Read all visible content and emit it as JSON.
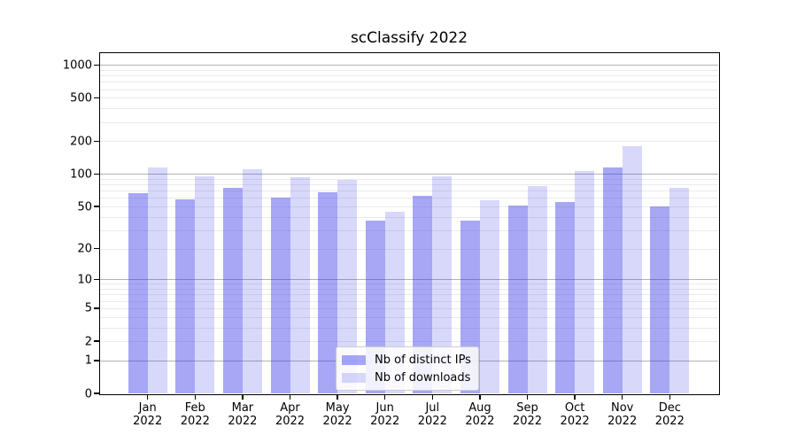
{
  "chart_data": {
    "type": "bar",
    "title": "scClassify 2022",
    "yscale": "log10(1+x)",
    "categories": [
      "Jan 2022",
      "Feb 2022",
      "Mar 2022",
      "Apr 2022",
      "May 2022",
      "Jun 2022",
      "Jul 2022",
      "Aug 2022",
      "Sep 2022",
      "Oct 2022",
      "Nov 2022",
      "Dec 2022"
    ],
    "series": [
      {
        "name": "Nb of distinct IPs",
        "color": "rgba(50,50,235,0.43)",
        "values": [
          66,
          58,
          75,
          61,
          68,
          37,
          63,
          37,
          51,
          55,
          115,
          50
        ]
      },
      {
        "name": "Nb of downloads",
        "color": "rgba(50,50,235,0.19)",
        "values": [
          116,
          95,
          110,
          93,
          88,
          45,
          95,
          57,
          77,
          106,
          181,
          75
        ]
      }
    ],
    "yticks": [
      1000,
      500,
      200,
      100,
      50,
      20,
      10,
      5,
      2,
      1,
      0
    ],
    "ylim": [
      0,
      1280
    ],
    "xlabel": "",
    "ylabel": "",
    "grid": {
      "major_at": [
        1,
        10,
        100,
        1000
      ],
      "minor_mantissas": [
        2,
        3,
        4,
        5,
        6,
        7,
        8,
        9
      ],
      "major_color": "#b2b2b2",
      "minor_color": "#eaeaea"
    },
    "legend_position": "lower center",
    "colors": {
      "background": "#ffffff",
      "frame": "#000000",
      "text": "#000000"
    }
  }
}
